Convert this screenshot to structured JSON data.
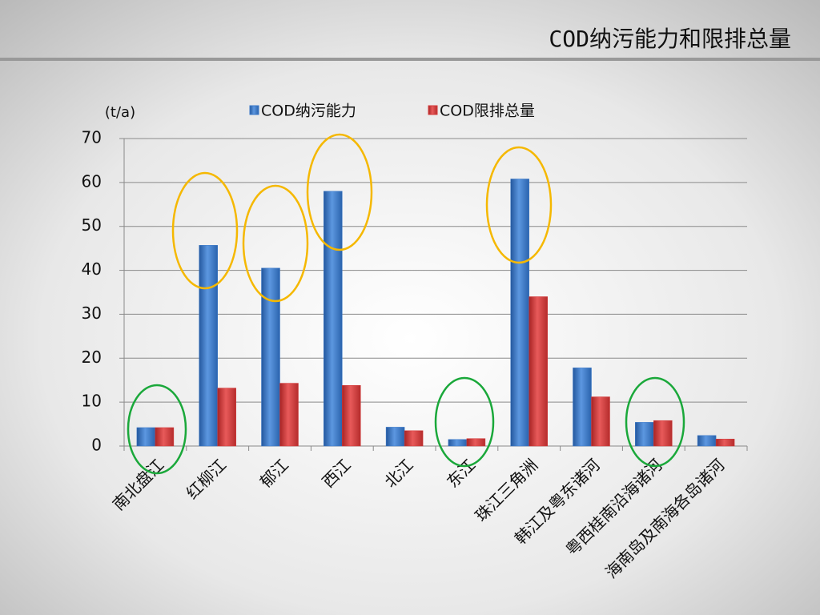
{
  "title": "COD纳污能力和限排总量",
  "chart_data": {
    "type": "bar",
    "y_label": "(t/a)",
    "categories": [
      "南北盘江",
      "红柳江",
      "郁江",
      "西江",
      "北江",
      "东江",
      "珠江三角洲",
      "韩江及粤东诸河",
      "粤西桂南沿海诸河",
      "海南岛及南海各岛诸河"
    ],
    "series": [
      {
        "name": "COD纳污能力",
        "color": "#3a78c8",
        "values": [
          4.2,
          45.7,
          40.5,
          58,
          4.3,
          1.5,
          60.8,
          17.8,
          5.4,
          2.4
        ]
      },
      {
        "name": "COD限排总量",
        "color": "#d43a3a",
        "values": [
          4.2,
          13.2,
          14.3,
          13.8,
          3.5,
          1.7,
          34,
          11.2,
          5.8,
          1.6
        ]
      }
    ],
    "ylim": [
      0,
      70
    ],
    "yticks": [
      0,
      10,
      20,
      30,
      40,
      50,
      60,
      70
    ],
    "grid": true,
    "legend": "top"
  }
}
